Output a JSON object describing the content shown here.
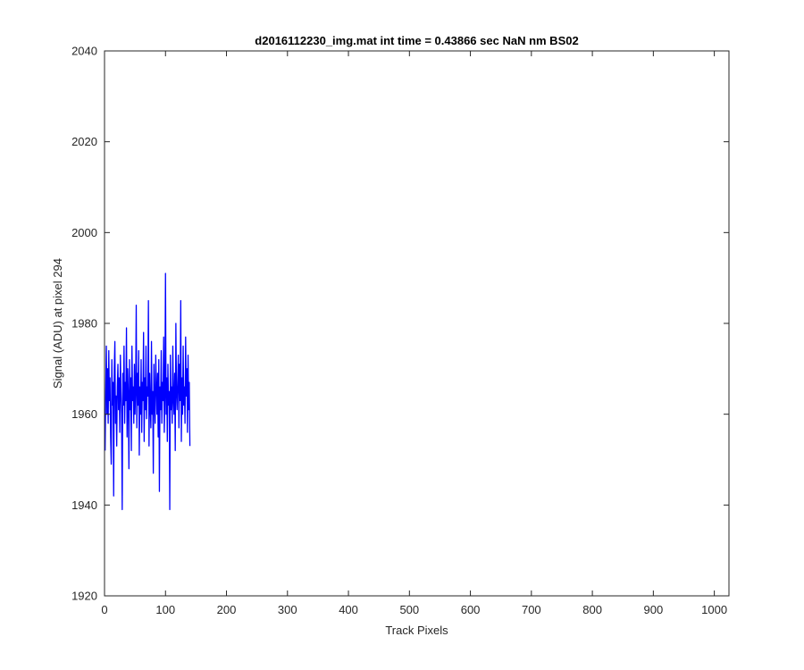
{
  "chart_data": {
    "type": "line",
    "title": "d2016112230_img.mat int time = 0.43866 sec  NaN nm BS02",
    "xlabel": "Track Pixels",
    "ylabel": "Signal (ADU) at pixel 294",
    "xlim": [
      0,
      1024
    ],
    "ylim": [
      1920,
      2040
    ],
    "xticks": [
      0,
      100,
      200,
      300,
      400,
      500,
      600,
      700,
      800,
      900,
      1000
    ],
    "yticks": [
      1920,
      1940,
      1960,
      1980,
      2000,
      2020,
      2040
    ],
    "grid": false,
    "colors": {
      "series": "#0000ff",
      "axes": "#262626",
      "background": "#ffffff"
    },
    "series": [
      {
        "x_start": 1,
        "x_step": 1,
        "values": [
          1952,
          1965,
          1975,
          1960,
          1970,
          1958,
          1974,
          1963,
          1968,
          1955,
          1949,
          1972,
          1962,
          1967,
          1942,
          1970,
          1976,
          1958,
          1964,
          1953,
          1966,
          1971,
          1961,
          1968,
          1956,
          1973,
          1965,
          1960,
          1939,
          1969,
          1962,
          1975,
          1958,
          1967,
          1963,
          1979,
          1955,
          1970,
          1964,
          1948,
          1972,
          1961,
          1968,
          1952,
          1975,
          1963,
          1966,
          1958,
          1971,
          1960,
          1965,
          1984,
          1957,
          1969,
          1962,
          1974,
          1951,
          1966,
          1960,
          1972,
          1956,
          1967,
          1963,
          1978,
          1954,
          1968,
          1961,
          1975,
          1959,
          1966,
          1964,
          1985,
          1953,
          1969,
          1962,
          1957,
          1976,
          1960,
          1965,
          1947,
          1971,
          1963,
          1958,
          1973,
          1966,
          1960,
          1969,
          1955,
          1972,
          1943,
          1966,
          1961,
          1974,
          1958,
          1967,
          1963,
          1977,
          1956,
          1964,
          1991,
          1960,
          1968,
          1954,
          1971,
          1962,
          1965,
          1939,
          1973,
          1961,
          1966,
          1958,
          1975,
          1963,
          1960,
          1969,
          1952,
          1980,
          1965,
          1961,
          1967,
          1973,
          1957,
          1971,
          1963,
          1985,
          1954,
          1968,
          1960,
          1975,
          1962,
          1966,
          1958,
          1977,
          1964,
          1970,
          1956,
          1973,
          1961,
          1967,
          1953
        ],
        "label_visible": false
      }
    ]
  }
}
